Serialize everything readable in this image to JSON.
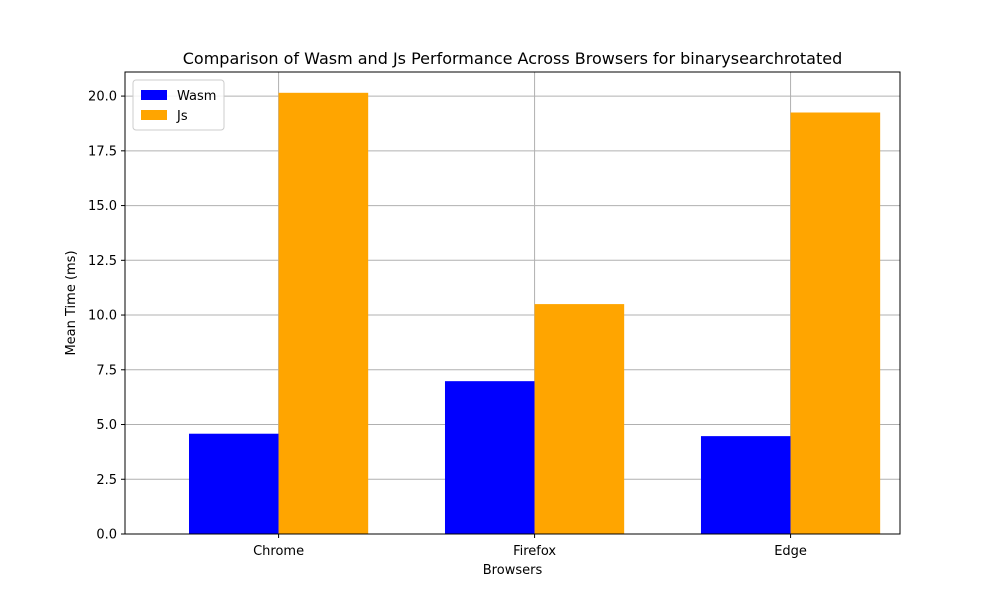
{
  "chart_data": {
    "type": "bar",
    "title": "Comparison of Wasm and Js Performance Across Browsers for binarysearchrotated",
    "xlabel": "Browsers",
    "ylabel": "Mean Time (ms)",
    "categories": [
      "Chrome",
      "Firefox",
      "Edge"
    ],
    "series": [
      {
        "name": "Wasm",
        "color": "#0000ff",
        "values": [
          4.58,
          6.98,
          4.47
        ]
      },
      {
        "name": "Js",
        "color": "#ffa500",
        "values": [
          20.15,
          10.5,
          19.25
        ]
      }
    ],
    "ylim": [
      0,
      21.1
    ],
    "yticks": [
      "0.0",
      "2.5",
      "5.0",
      "7.5",
      "10.0",
      "12.5",
      "15.0",
      "17.5",
      "20.0"
    ],
    "grid": true,
    "legend_position": "top-left"
  }
}
